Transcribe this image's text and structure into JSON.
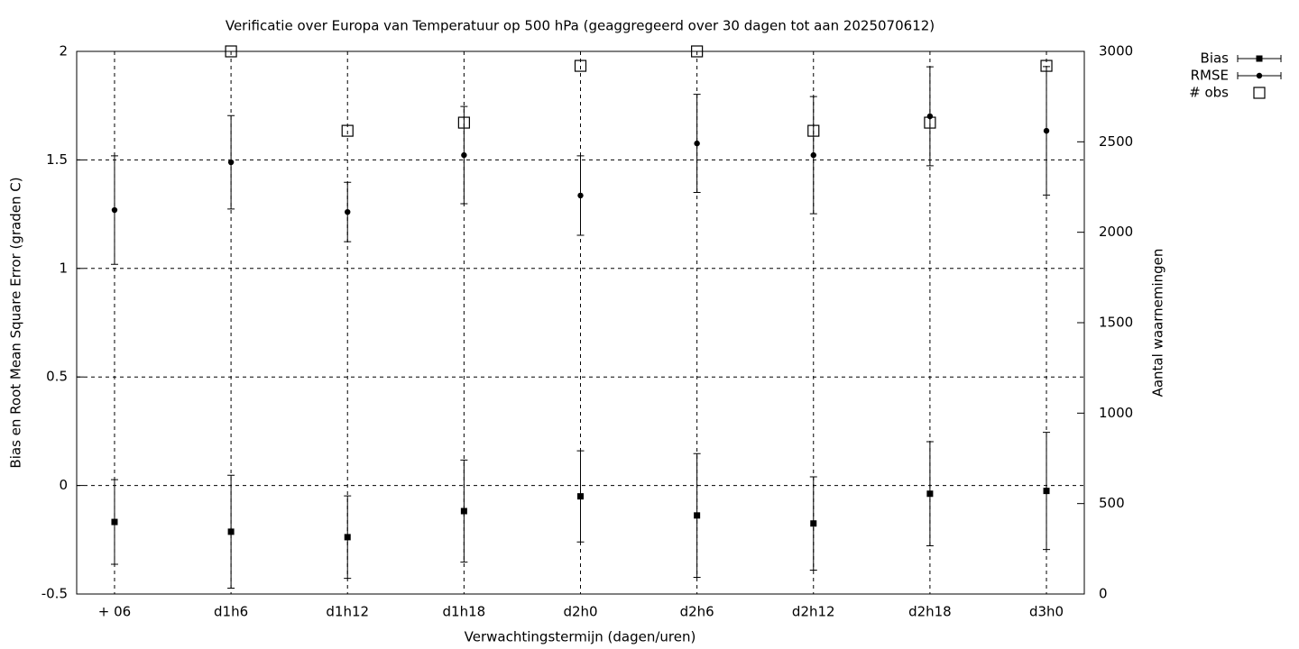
{
  "chart_data": {
    "type": "errorbar",
    "title": "Verificatie over Europa van Temperatuur op 500 hPa (geaggregeerd over 30 dagen tot aan 2025070612)",
    "x_label": "Verwachtingstermijn (dagen/uren)",
    "y_label": "Bias en Root Mean Square Error (graden C)",
    "y2_label": "Aantal waarnemingen",
    "categories": [
      "+ 06",
      "d1h6",
      "d1h12",
      "d1h18",
      "d2h0",
      "d2h6",
      "d2h12",
      "d2h18",
      "d3h0"
    ],
    "series": [
      {
        "name": "Bias",
        "color": "#000000",
        "marker": "square",
        "values": [
          -0.168,
          -0.213,
          -0.238,
          -0.118,
          -0.05,
          -0.138,
          -0.175,
          -0.038,
          -0.025
        ],
        "errors": [
          0.195,
          0.26,
          0.19,
          0.235,
          0.21,
          0.285,
          0.215,
          0.24,
          0.27
        ]
      },
      {
        "name": "RMSE",
        "color": "#000000",
        "marker": "circle",
        "values": [
          1.269,
          1.489,
          1.26,
          1.522,
          1.336,
          1.576,
          1.522,
          1.701,
          1.634
        ],
        "errors": [
          0.25,
          0.215,
          0.137,
          0.224,
          0.183,
          0.226,
          0.27,
          0.228,
          0.296
        ]
      },
      {
        "name": "# obs",
        "color": "#000000",
        "marker": "open-square",
        "axis": "y2",
        "values": [
          null,
          3000,
          2561,
          2606,
          2920,
          3000,
          2561,
          2606,
          2920
        ]
      }
    ],
    "ylim": [
      -0.5,
      2
    ],
    "yticks": [
      -0.5,
      0,
      0.5,
      1,
      1.5,
      2
    ],
    "y2lim": [
      0,
      3000
    ],
    "y2ticks": [
      0,
      500,
      1000,
      1500,
      2000,
      2500,
      3000
    ],
    "grid": true,
    "legend": "top-right"
  }
}
